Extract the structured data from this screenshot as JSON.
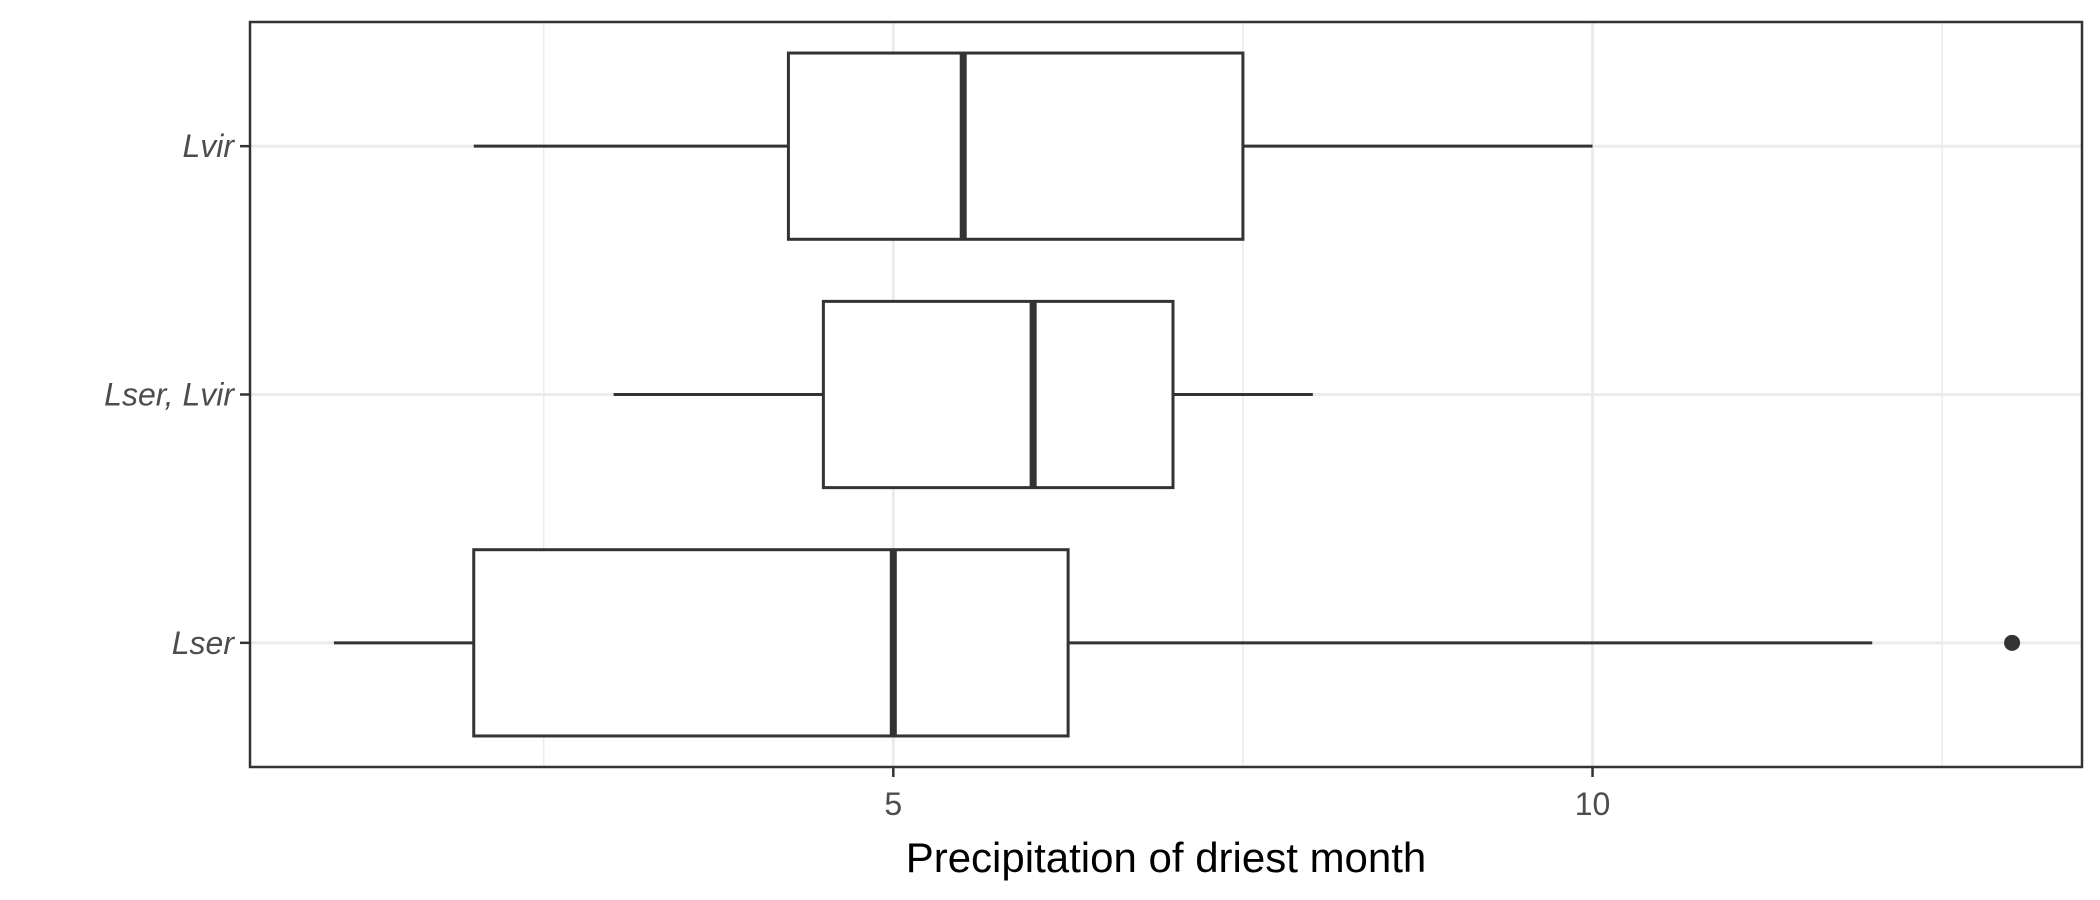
{
  "chart_data": {
    "type": "boxplot",
    "orientation": "horizontal",
    "title": "",
    "xlabel": "Precipitation of driest month",
    "ylabel": "",
    "xlim": [
      0.4,
      13.5
    ],
    "x_ticks": [
      5,
      10
    ],
    "x_tick_labels": [
      "5",
      "10"
    ],
    "x_minor_gridlines": [
      2.5,
      7.5,
      12.5
    ],
    "categories": [
      "Lvir",
      "Lser, Lvir",
      "Lser"
    ],
    "boxes": [
      {
        "category": "Lvir",
        "whisker_low": 2,
        "q1": 4.25,
        "median": 5.5,
        "q3": 7.5,
        "whisker_high": 10,
        "outliers": []
      },
      {
        "category": "Lser, Lvir",
        "whisker_low": 3,
        "q1": 4.5,
        "median": 6,
        "q3": 7,
        "whisker_high": 8,
        "outliers": []
      },
      {
        "category": "Lser",
        "whisker_low": 1,
        "q1": 2,
        "median": 5,
        "q3": 6.25,
        "whisker_high": 12,
        "outliers": [
          13
        ]
      }
    ],
    "grid": true,
    "legend": "none",
    "colors": {
      "box_outline": "#333333",
      "box_fill": "#ffffff",
      "grid": "#ebebeb",
      "panel_border": "#333333"
    }
  }
}
